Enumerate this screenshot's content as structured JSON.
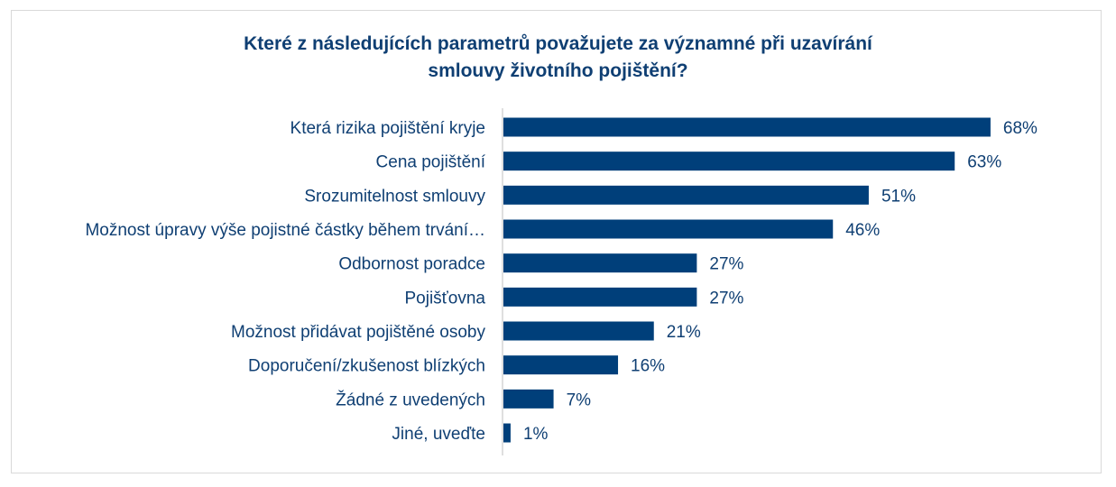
{
  "chart_data": {
    "type": "bar",
    "orientation": "horizontal",
    "title_lines": [
      "Které z následujících parametrů považujete za významné při uzavírání",
      "smlouvy životního pojištění?"
    ],
    "categories": [
      "Která rizika pojištění kryje",
      "Cena pojištění",
      "Srozumitelnost smlouvy",
      "Možnost úpravy výše pojistné částky během trvání…",
      "Odbornost poradce",
      "Pojišťovna",
      "Možnost přidávat pojištěné osoby",
      "Doporučení/zkušenost blízkých",
      "Žádné z uvedených",
      "Jiné, uveďte"
    ],
    "values": [
      68,
      63,
      51,
      46,
      27,
      27,
      21,
      16,
      7,
      1
    ],
    "value_labels": [
      "68%",
      "63%",
      "51%",
      "46%",
      "27%",
      "27%",
      "21%",
      "16%",
      "7%",
      "1%"
    ],
    "unit": "%",
    "xlim": [
      0,
      80
    ],
    "grid": false,
    "legend": "none",
    "bar_color": "#003f7a",
    "text_color": "#0f3f73",
    "axis_color": "#bfbfbf"
  }
}
